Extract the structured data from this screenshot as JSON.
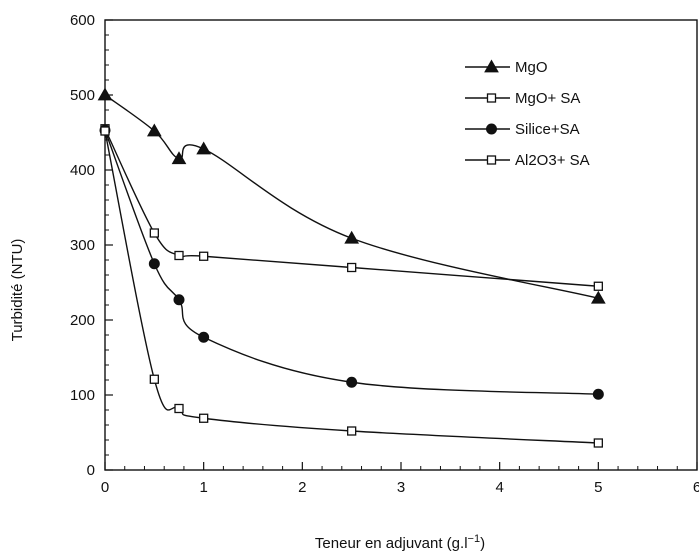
{
  "chart_data": {
    "type": "line",
    "title": "",
    "xlabel": "Teneur en adjuvant (g.l",
    "xlabel_unit_exp": "−1",
    "xlabel_close": ")",
    "ylabel": "Turbidité (NTU)",
    "xlim": [
      0,
      6
    ],
    "ylim": [
      0,
      600
    ],
    "x_ticks": [
      0,
      1,
      2,
      3,
      4,
      5,
      6
    ],
    "y_ticks": [
      0,
      100,
      200,
      300,
      400,
      500,
      600
    ],
    "grid": false,
    "legend_position": "top-right",
    "series": [
      {
        "name": "MgO",
        "marker": "triangle-filled",
        "x": [
          0,
          0.5,
          0.75,
          1,
          2.5,
          5
        ],
        "y": [
          500,
          452,
          415,
          428,
          309,
          229
        ]
      },
      {
        "name": "MgO+ SA",
        "marker": "square-open",
        "x": [
          0,
          0.5,
          0.75,
          1,
          2.5,
          5
        ],
        "y": [
          455,
          316,
          286,
          285,
          270,
          245
        ]
      },
      {
        "name": "Silice+SA",
        "marker": "circle-filled",
        "x": [
          0,
          0.5,
          0.75,
          1,
          2.5,
          5
        ],
        "y": [
          453,
          275,
          227,
          177,
          117,
          101
        ]
      },
      {
        "name": "Al2O3+ SA",
        "marker": "square-open",
        "x": [
          0,
          0.5,
          0.75,
          1,
          2.5,
          5
        ],
        "y": [
          452,
          121,
          82,
          69,
          52,
          36
        ]
      }
    ]
  }
}
